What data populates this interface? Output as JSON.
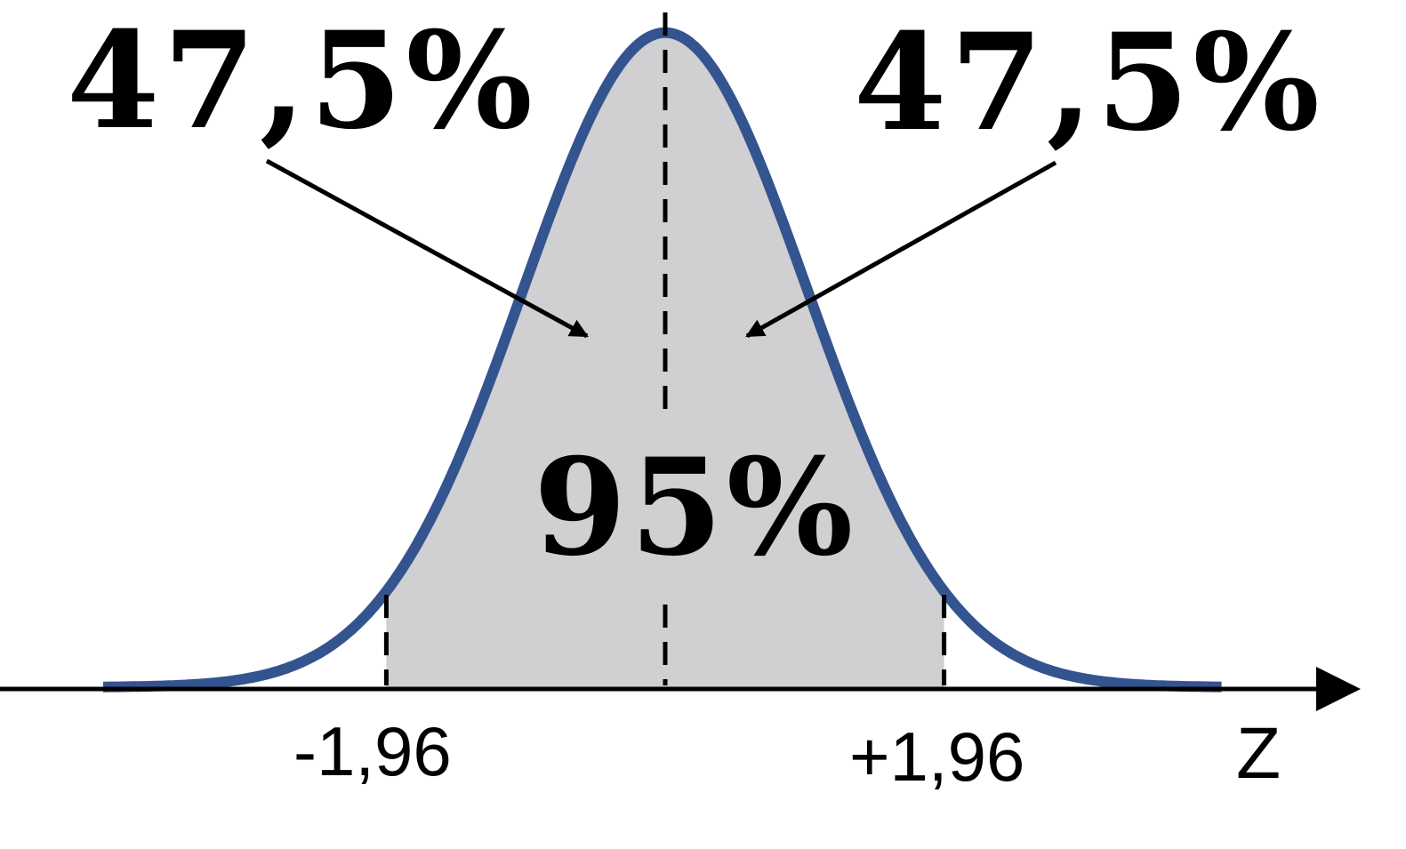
{
  "labels": {
    "left_area": "47,5%",
    "right_area": "47,5%",
    "center_area": "95%"
  },
  "axis": {
    "name": "Z",
    "left_tick": "-1,96",
    "right_tick": "+1,96"
  },
  "colors": {
    "curve": "#34548f",
    "shaded_area": "#d0cfd1",
    "axis": "#000000",
    "text": "#000000"
  },
  "distribution": {
    "type": "standard-normal",
    "lower_bound_z": -1.96,
    "upper_bound_z": 1.96,
    "central_probability": 0.95
  }
}
